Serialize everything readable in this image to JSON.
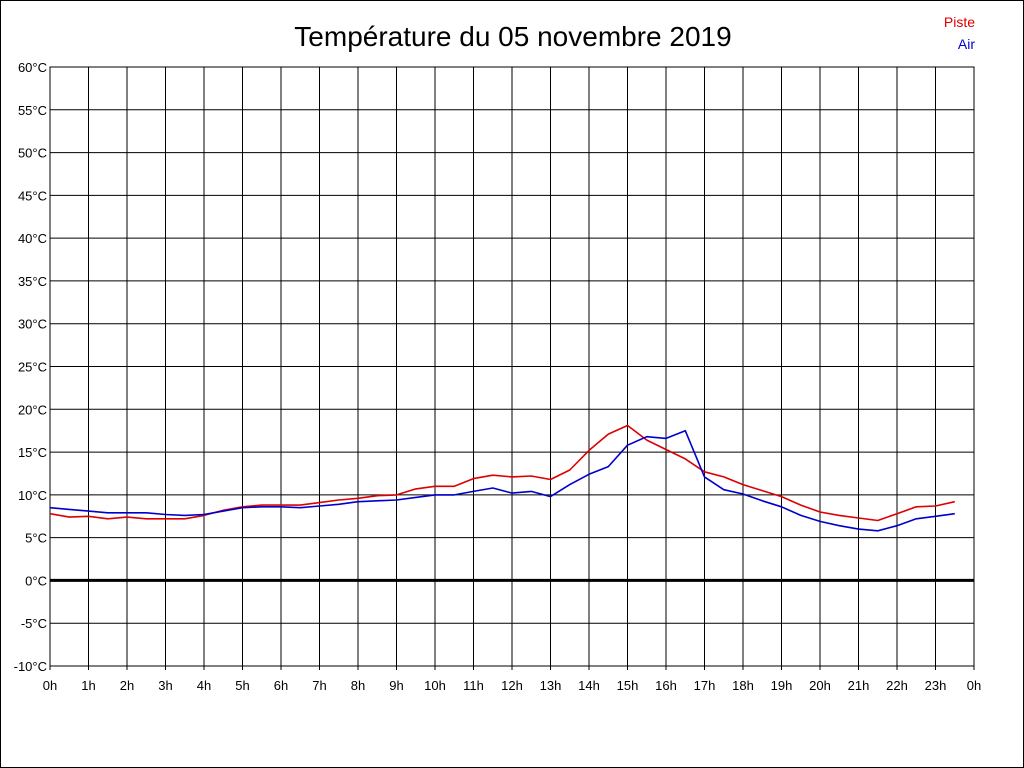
{
  "chart_data": {
    "type": "line",
    "title": "Température du 05 novembre 2019",
    "xlabel": "",
    "ylabel": "",
    "ylim": [
      -10,
      60
    ],
    "xlim": [
      0,
      24
    ],
    "ytick_step": 5,
    "ytick_labels": [
      "-10°C",
      "-5°C",
      "0°C",
      "5°C",
      "10°C",
      "15°C",
      "20°C",
      "25°C",
      "30°C",
      "35°C",
      "40°C",
      "45°C",
      "50°C",
      "55°C",
      "60°C"
    ],
    "xtick_labels": [
      "0h",
      "1h",
      "2h",
      "3h",
      "4h",
      "5h",
      "6h",
      "7h",
      "8h",
      "9h",
      "10h",
      "11h",
      "12h",
      "13h",
      "14h",
      "15h",
      "16h",
      "17h",
      "18h",
      "19h",
      "20h",
      "21h",
      "22h",
      "23h",
      "0h"
    ],
    "grid": true,
    "zero_line": true,
    "legend_position": "top-right",
    "x": [
      0,
      0.5,
      1,
      1.5,
      2,
      2.5,
      3,
      3.5,
      4,
      4.5,
      5,
      5.5,
      6,
      6.5,
      7,
      7.5,
      8,
      8.5,
      9,
      9.5,
      10,
      10.5,
      11,
      11.5,
      12,
      12.5,
      13,
      13.5,
      14,
      14.5,
      15,
      15.5,
      16,
      16.5,
      17,
      17.5,
      18,
      18.5,
      19,
      19.5,
      20,
      20.5,
      21,
      21.5,
      22,
      22.5,
      23,
      23.5
    ],
    "series": [
      {
        "name": "Piste",
        "color": "#dd0000",
        "values": [
          7.8,
          7.4,
          7.5,
          7.2,
          7.4,
          7.2,
          7.2,
          7.2,
          7.6,
          8.2,
          8.6,
          8.8,
          8.8,
          8.8,
          9.1,
          9.4,
          9.6,
          9.9,
          10.0,
          10.7,
          11.0,
          11.0,
          11.9,
          12.3,
          12.1,
          12.2,
          11.8,
          12.9,
          15.2,
          17.1,
          18.1,
          16.4,
          15.3,
          14.2,
          12.7,
          12.1,
          11.2,
          10.5,
          9.8,
          8.8,
          8.0,
          7.6,
          7.3,
          7.0,
          7.8,
          8.6,
          8.7,
          9.2
        ]
      },
      {
        "name": "Air",
        "color": "#0000cc",
        "values": [
          8.5,
          8.3,
          8.1,
          7.9,
          7.9,
          7.9,
          7.7,
          7.6,
          7.7,
          8.1,
          8.5,
          8.6,
          8.6,
          8.5,
          8.7,
          8.9,
          9.2,
          9.3,
          9.4,
          9.7,
          10.0,
          10.0,
          10.4,
          10.8,
          10.2,
          10.4,
          9.8,
          11.2,
          12.4,
          13.3,
          15.8,
          16.8,
          16.6,
          17.5,
          12.1,
          10.6,
          10.1,
          9.3,
          8.6,
          7.6,
          6.9,
          6.4,
          6.0,
          5.8,
          6.4,
          7.2,
          7.5,
          7.8
        ]
      }
    ]
  }
}
